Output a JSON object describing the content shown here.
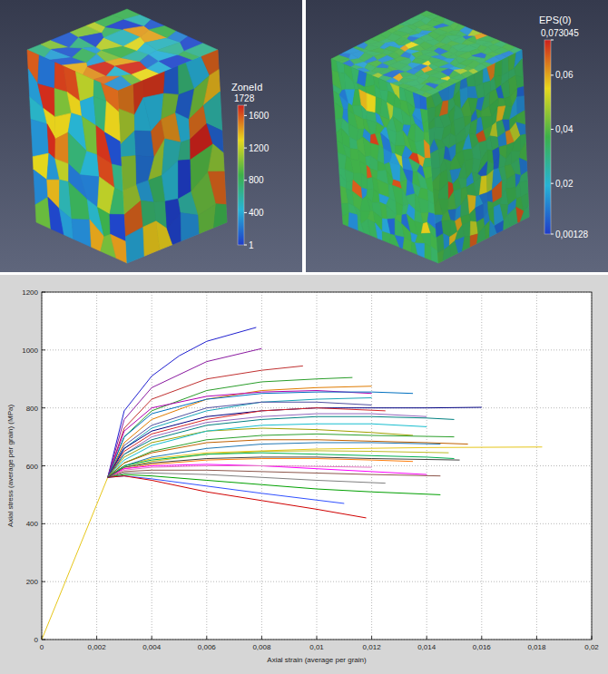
{
  "chart_data": [
    {
      "type": "cube",
      "colorbar": {
        "title": "ZoneId",
        "range": [
          1,
          1728
        ],
        "ticks": [
          1,
          400,
          800,
          1200,
          1600,
          1728
        ]
      }
    },
    {
      "type": "cube",
      "colorbar": {
        "title": "EPS(0)",
        "range": [
          0.00128,
          0.073045
        ],
        "ticks": [
          {
            "value": 0.00128,
            "label": "0,00128"
          },
          {
            "value": 0.02,
            "label": "0,02"
          },
          {
            "value": 0.04,
            "label": "0,04"
          },
          {
            "value": 0.06,
            "label": "0,06"
          },
          {
            "value": 0.073045,
            "label": "0,073045"
          }
        ]
      }
    },
    {
      "type": "line",
      "x_label": "Axial strain (average per grain)",
      "y_label": "Axial stress (average per grain) (MPa)",
      "xlim": [
        0,
        0.02
      ],
      "ylim": [
        0,
        1200
      ],
      "xticks": [
        0,
        {
          "value": 0.002,
          "label": "0,002"
        },
        {
          "value": 0.004,
          "label": "0,004"
        },
        {
          "value": 0.006,
          "label": "0,006"
        },
        {
          "value": 0.008,
          "label": "0,008"
        },
        {
          "value": 0.01,
          "label": "0,01"
        },
        {
          "value": 0.012,
          "label": "0,012"
        },
        {
          "value": 0.014,
          "label": "0,014"
        },
        {
          "value": 0.016,
          "label": "0,016"
        },
        {
          "value": 0.018,
          "label": "0,018"
        },
        {
          "value": 0.02,
          "label": "0,02"
        }
      ],
      "yticks": [
        0,
        200,
        400,
        600,
        800,
        1000,
        1200
      ],
      "grid": true,
      "series": [
        {
          "color": "#e6c619",
          "x": [
            0,
            0.0024,
            0.003,
            0.004,
            0.006,
            0.01,
            0.014,
            0.0182
          ],
          "values": [
            0,
            560,
            600,
            625,
            645,
            658,
            663,
            665
          ]
        },
        {
          "color": "#2020d0",
          "x": [
            0.0024,
            0.003,
            0.004,
            0.005,
            0.006,
            0.0078
          ],
          "values": [
            560,
            790,
            910,
            980,
            1030,
            1078
          ]
        },
        {
          "color": "#8a1aa0",
          "x": [
            0.0024,
            0.003,
            0.004,
            0.006,
            0.008
          ],
          "values": [
            560,
            760,
            870,
            960,
            1005
          ]
        },
        {
          "color": "#c03030",
          "x": [
            0.0024,
            0.003,
            0.004,
            0.006,
            0.008,
            0.0095
          ],
          "values": [
            560,
            730,
            830,
            900,
            930,
            945
          ]
        },
        {
          "color": "#2a9d2a",
          "x": [
            0.0024,
            0.003,
            0.004,
            0.006,
            0.008,
            0.01,
            0.0113
          ],
          "values": [
            560,
            700,
            790,
            860,
            890,
            900,
            905
          ]
        },
        {
          "color": "#e07b00",
          "x": [
            0.0024,
            0.003,
            0.004,
            0.006,
            0.008,
            0.01,
            0.012
          ],
          "values": [
            560,
            680,
            760,
            830,
            860,
            870,
            875
          ]
        },
        {
          "color": "#b000b0",
          "x": [
            0.0024,
            0.003,
            0.004,
            0.006,
            0.008,
            0.01,
            0.012
          ],
          "values": [
            560,
            720,
            800,
            840,
            855,
            860,
            850
          ]
        },
        {
          "color": "#0070c0",
          "x": [
            0.0024,
            0.003,
            0.004,
            0.006,
            0.008,
            0.01,
            0.012,
            0.0135
          ],
          "values": [
            560,
            700,
            780,
            830,
            850,
            855,
            855,
            850
          ]
        },
        {
          "color": "#1aa6b7",
          "x": [
            0.0024,
            0.003,
            0.004,
            0.006,
            0.008,
            0.01,
            0.012
          ],
          "values": [
            560,
            660,
            730,
            790,
            820,
            830,
            835
          ]
        },
        {
          "color": "#5050a0",
          "x": [
            0.0024,
            0.003,
            0.004,
            0.006,
            0.008,
            0.01,
            0.012
          ],
          "values": [
            560,
            670,
            740,
            800,
            820,
            820,
            810
          ]
        },
        {
          "color": "#000080",
          "x": [
            0.0024,
            0.003,
            0.004,
            0.006,
            0.008,
            0.01,
            0.012,
            0.014,
            0.016
          ],
          "values": [
            560,
            660,
            720,
            770,
            790,
            800,
            800,
            800,
            802
          ]
        },
        {
          "color": "#d62728",
          "x": [
            0.0024,
            0.003,
            0.004,
            0.006,
            0.008,
            0.01,
            0.0125
          ],
          "values": [
            560,
            650,
            710,
            760,
            790,
            800,
            790
          ]
        },
        {
          "color": "#9467bd",
          "x": [
            0.0024,
            0.003,
            0.004,
            0.006,
            0.008,
            0.01,
            0.012,
            0.014
          ],
          "values": [
            560,
            640,
            700,
            750,
            770,
            780,
            780,
            770
          ]
        },
        {
          "color": "#008080",
          "x": [
            0.0024,
            0.003,
            0.004,
            0.006,
            0.008,
            0.01,
            0.012,
            0.014,
            0.015
          ],
          "values": [
            560,
            640,
            690,
            740,
            760,
            770,
            770,
            765,
            760
          ]
        },
        {
          "color": "#a0a000",
          "x": [
            0.0024,
            0.003,
            0.004,
            0.006,
            0.008,
            0.01,
            0.012,
            0.0135
          ],
          "values": [
            560,
            630,
            680,
            720,
            730,
            725,
            715,
            705
          ]
        },
        {
          "color": "#17becf",
          "x": [
            0.0024,
            0.003,
            0.004,
            0.006,
            0.008,
            0.01,
            0.012,
            0.014
          ],
          "values": [
            560,
            620,
            670,
            720,
            740,
            745,
            745,
            735
          ]
        },
        {
          "color": "#2ca02c",
          "x": [
            0.0024,
            0.003,
            0.004,
            0.006,
            0.008,
            0.01,
            0.012,
            0.015
          ],
          "values": [
            560,
            610,
            650,
            690,
            705,
            710,
            705,
            700
          ]
        },
        {
          "color": "#c06000",
          "x": [
            0.0024,
            0.003,
            0.004,
            0.006,
            0.008,
            0.01,
            0.012,
            0.014,
            0.0155
          ],
          "values": [
            560,
            610,
            645,
            680,
            690,
            690,
            685,
            680,
            675
          ]
        },
        {
          "color": "#1f77b4",
          "x": [
            0.0024,
            0.003,
            0.004,
            0.006,
            0.008,
            0.01,
            0.012,
            0.0145
          ],
          "values": [
            560,
            600,
            630,
            660,
            675,
            680,
            680,
            675
          ]
        },
        {
          "color": "#bcbd22",
          "x": [
            0.0024,
            0.003,
            0.004,
            0.006,
            0.008,
            0.01,
            0.012,
            0.0148
          ],
          "values": [
            560,
            595,
            615,
            640,
            650,
            652,
            650,
            645
          ]
        },
        {
          "color": "#00b050",
          "x": [
            0.0024,
            0.003,
            0.004,
            0.006,
            0.008,
            0.01,
            0.012,
            0.014,
            0.015
          ],
          "values": [
            560,
            600,
            620,
            640,
            645,
            640,
            635,
            630,
            625
          ]
        },
        {
          "color": "#ff7f0e",
          "x": [
            0.0024,
            0.003,
            0.004,
            0.006,
            0.008,
            0.01,
            0.012,
            0.0135
          ],
          "values": [
            560,
            590,
            605,
            620,
            625,
            625,
            620,
            615
          ]
        },
        {
          "color": "#ff00ff",
          "x": [
            0.0024,
            0.003,
            0.004,
            0.006,
            0.008,
            0.01,
            0.012,
            0.014
          ],
          "values": [
            560,
            590,
            600,
            605,
            600,
            590,
            580,
            570
          ]
        },
        {
          "color": "#e377c2",
          "x": [
            0.0024,
            0.003,
            0.004,
            0.006,
            0.008,
            0.01,
            0.012
          ],
          "values": [
            560,
            585,
            595,
            600,
            600,
            598,
            595
          ]
        },
        {
          "color": "#8c564b",
          "x": [
            0.0024,
            0.003,
            0.004,
            0.006,
            0.008,
            0.01,
            0.012,
            0.0145
          ],
          "values": [
            560,
            580,
            585,
            585,
            580,
            575,
            570,
            565
          ]
        },
        {
          "color": "#7f7f7f",
          "x": [
            0.0024,
            0.003,
            0.004,
            0.006,
            0.008,
            0.01,
            0.0125
          ],
          "values": [
            560,
            575,
            575,
            570,
            560,
            550,
            540
          ]
        },
        {
          "color": "#00a000",
          "x": [
            0.0024,
            0.003,
            0.004,
            0.006,
            0.008,
            0.01,
            0.012,
            0.0145
          ],
          "values": [
            560,
            570,
            565,
            550,
            535,
            520,
            510,
            500
          ]
        },
        {
          "color": "#3050ff",
          "x": [
            0.0024,
            0.003,
            0.004,
            0.006,
            0.008,
            0.011
          ],
          "values": [
            560,
            565,
            555,
            530,
            505,
            470
          ]
        },
        {
          "color": "#d00000",
          "x": [
            0.0024,
            0.003,
            0.004,
            0.006,
            0.008,
            0.01,
            0.0118
          ],
          "values": [
            560,
            565,
            550,
            510,
            480,
            450,
            420
          ]
        },
        {
          "color": "#404040",
          "x": [
            0.0024,
            0.003,
            0.004,
            0.006,
            0.008,
            0.01,
            0.012,
            0.0152
          ],
          "values": [
            560,
            595,
            610,
            625,
            630,
            630,
            625,
            620
          ]
        }
      ]
    }
  ]
}
